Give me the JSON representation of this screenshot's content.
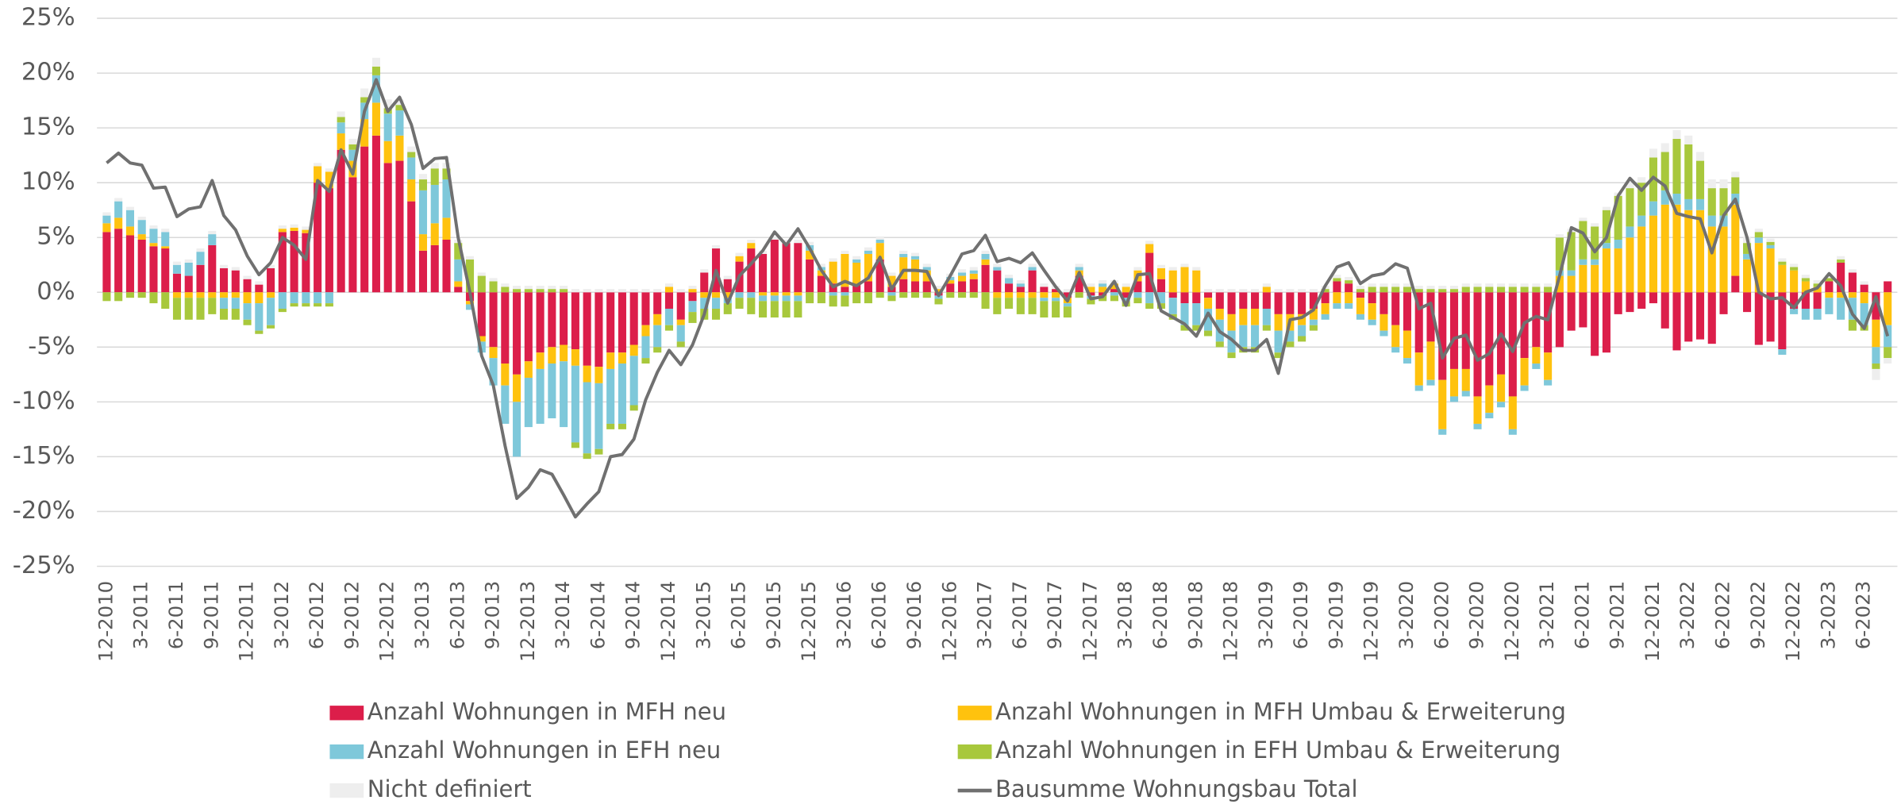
{
  "chart_data": {
    "type": "bar",
    "stacked": true,
    "grid": true,
    "legend": "bottom",
    "ylim": [
      -25,
      25
    ],
    "yticks": [
      {
        "value": -25,
        "label": "-25%"
      },
      {
        "value": -20,
        "label": "-20%"
      },
      {
        "value": -15,
        "label": "-15%"
      },
      {
        "value": -10,
        "label": "-10%"
      },
      {
        "value": -5,
        "label": "-5%"
      },
      {
        "value": 0,
        "label": "0%"
      },
      {
        "value": 5,
        "label": "5%"
      },
      {
        "value": 10,
        "label": "10%"
      },
      {
        "value": 15,
        "label": "15%"
      },
      {
        "value": 20,
        "label": "20%"
      },
      {
        "value": 25,
        "label": "25%"
      }
    ],
    "categories": [
      "12-2010",
      null,
      null,
      "3-2011",
      null,
      null,
      "6-2011",
      null,
      null,
      "9-2011",
      null,
      null,
      "12-2011",
      null,
      null,
      "3-2012",
      null,
      null,
      "6-2012",
      null,
      null,
      "9-2012",
      null,
      null,
      "12-2012",
      null,
      null,
      "3-2013",
      null,
      null,
      "6-2013",
      null,
      null,
      "9-2013",
      null,
      null,
      "12-2013",
      null,
      null,
      "3-2014",
      null,
      null,
      "6-2014",
      null,
      null,
      "9-2014",
      null,
      null,
      "12-2014",
      null,
      null,
      "3-2015",
      null,
      null,
      "6-2015",
      null,
      null,
      "9-2015",
      null,
      null,
      "12-2015",
      null,
      null,
      "3-2016",
      null,
      null,
      "6-2016",
      null,
      null,
      "9-2016",
      null,
      null,
      "12-2016",
      null,
      null,
      "3-2017",
      null,
      null,
      "6-2017",
      null,
      null,
      "9-2017",
      null,
      null,
      "12-2017",
      null,
      null,
      "3-2018",
      null,
      null,
      "6-2018",
      null,
      null,
      "9-2018",
      null,
      null,
      "12-2018",
      null,
      null,
      "3-2019",
      null,
      null,
      "6-2019",
      null,
      null,
      "9-2019",
      null,
      null,
      "12-2019",
      null,
      null,
      "3-2020",
      null,
      null,
      "6-2020",
      null,
      null,
      "9-2020",
      null,
      null,
      "12-2020",
      null,
      null,
      "3-2021",
      null,
      null,
      "6-2021",
      null,
      null,
      "9-2021",
      null,
      null,
      "12-2021",
      null,
      null,
      "3-2022",
      null,
      null,
      "6-2022",
      null,
      null,
      "9-2022",
      null,
      null,
      "12-2022",
      null,
      null,
      "3-2023",
      null,
      null,
      "6-2023",
      null,
      null
    ],
    "series": [
      {
        "name": "Anzahl Wohnungen in MFH neu",
        "color": "#dc1e4a",
        "values": [
          5.5,
          5.8,
          5.2,
          4.8,
          4.2,
          4.0,
          1.7,
          1.5,
          2.5,
          4.3,
          2.2,
          2.0,
          1.2,
          0.7,
          2.2,
          5.5,
          5.6,
          5.4,
          10.0,
          9.5,
          13.0,
          10.5,
          13.3,
          14.3,
          11.8,
          12.0,
          8.3,
          3.8,
          4.3,
          4.8,
          0.5,
          -0.8,
          -4.0,
          -5.0,
          -6.5,
          -7.5,
          -6.3,
          -5.5,
          -5.0,
          -4.8,
          -5.2,
          -6.7,
          -6.8,
          -5.5,
          -5.5,
          -4.8,
          -3.0,
          -2.0,
          -1.5,
          -2.5,
          -0.8,
          1.8,
          4.0,
          1.2,
          2.8,
          4.0,
          3.5,
          4.8,
          4.5,
          4.5,
          3.0,
          1.5,
          0.8,
          0.5,
          0.7,
          1.0,
          3.0,
          0.5,
          1.2,
          1.0,
          1.0,
          -0.3,
          0.8,
          1.0,
          1.2,
          2.5,
          2.0,
          0.8,
          0.5,
          2.0,
          0.5,
          0.3,
          -0.5,
          1.5,
          -0.3,
          -0.3,
          0.3,
          -0.5,
          1.0,
          3.6,
          1.2,
          -0.5,
          -1.0,
          -1.0,
          -0.5,
          -1.5,
          -2.0,
          -1.5,
          -1.5,
          -1.5,
          -2.0,
          -2.0,
          -2.0,
          -1.5,
          -1.0,
          1.0,
          0.8,
          -0.5,
          -1.0,
          -2.0,
          -3.0,
          -3.5,
          -5.5,
          -4.5,
          -8.0,
          -7.0,
          -7.0,
          -9.5,
          -8.5,
          -7.5,
          -9.5,
          -6.0,
          -5.0,
          -5.5,
          -5.0,
          -3.5,
          -3.2,
          -5.8,
          -5.5,
          -2.0,
          -1.8,
          -1.5,
          -1.0,
          -3.3,
          -5.3,
          -4.5,
          -4.3,
          -4.7,
          -2.0,
          1.5,
          -1.8,
          -4.8,
          -4.5,
          -5.2,
          -1.5,
          -1.5,
          -1.5,
          1.0,
          2.7,
          1.8,
          0.7,
          -2.5,
          1.0
        ]
      },
      {
        "name": "Anzahl Wohnungen in MFH Umbau & Erweiterung",
        "color": "#ffc20e",
        "values": [
          0.8,
          1.0,
          0.8,
          0.5,
          0.3,
          0.2,
          -0.5,
          -0.5,
          -0.5,
          -0.5,
          -0.5,
          -0.5,
          -1.0,
          -1.0,
          -0.5,
          0.3,
          0.3,
          0.3,
          1.5,
          1.5,
          1.5,
          1.5,
          2.5,
          3.0,
          2.0,
          2.3,
          2.0,
          1.5,
          2.0,
          2.0,
          0.5,
          -0.3,
          -0.5,
          -1.0,
          -2.0,
          -2.5,
          -1.5,
          -1.5,
          -1.5,
          -1.5,
          -1.5,
          -1.5,
          -1.5,
          -1.5,
          -1.0,
          -1.0,
          -1.0,
          -1.0,
          0.5,
          -0.5,
          0.3,
          -0.5,
          -0.5,
          -0.5,
          0.5,
          0.5,
          -0.3,
          -0.3,
          -0.3,
          -0.3,
          0.8,
          0.5,
          2.0,
          3.0,
          2.0,
          2.5,
          1.5,
          1.0,
          2.0,
          2.0,
          1.0,
          0.3,
          0.3,
          0.5,
          0.5,
          0.5,
          -0.5,
          -0.5,
          -0.5,
          -0.5,
          -0.5,
          -0.5,
          -0.5,
          0.5,
          0.5,
          0.5,
          0.5,
          0.5,
          1.0,
          0.8,
          1.0,
          2.0,
          2.3,
          2.0,
          -1.0,
          -1.0,
          -1.5,
          -1.5,
          -1.5,
          0.5,
          -1.5,
          -1.5,
          -1.0,
          -1.0,
          -1.0,
          -1.0,
          -1.0,
          -1.5,
          -1.5,
          -1.5,
          -2.0,
          -2.5,
          -3.0,
          -3.5,
          -4.5,
          -2.5,
          -2.0,
          -2.5,
          -2.5,
          -2.5,
          -3.0,
          -2.5,
          -1.5,
          -2.5,
          1.5,
          1.5,
          2.5,
          2.5,
          4.0,
          4.0,
          5.0,
          6.0,
          7.0,
          8.0,
          8.0,
          7.5,
          7.5,
          6.0,
          6.0,
          6.5,
          3.0,
          4.5,
          4.0,
          2.5,
          2.0,
          1.0,
          0.5,
          -0.5,
          -0.5,
          -0.5,
          -1.0,
          -2.5,
          -3.0
        ]
      },
      {
        "name": "Anzahl Wohnungen in EFH neu",
        "color": "#7ec8da",
        "values": [
          0.7,
          1.5,
          1.5,
          1.3,
          1.3,
          1.3,
          0.8,
          1.2,
          1.2,
          1.0,
          -1.0,
          -1.0,
          -1.5,
          -2.5,
          -2.5,
          -1.5,
          -1.0,
          -1.0,
          -1.0,
          -1.0,
          1.0,
          1.0,
          1.5,
          2.5,
          2.5,
          2.3,
          2.0,
          4.0,
          3.5,
          3.5,
          2.0,
          -0.5,
          -1.0,
          -2.5,
          -3.5,
          -5.0,
          -4.5,
          -5.0,
          -5.0,
          -6.0,
          -7.0,
          -6.5,
          -6.0,
          -5.0,
          -5.5,
          -4.5,
          -2.0,
          -2.0,
          -1.5,
          -1.5,
          -1.0,
          -1.0,
          -1.0,
          -0.5,
          -0.5,
          -0.5,
          -0.5,
          -0.5,
          -0.5,
          -0.5,
          0.5,
          0.3,
          -0.3,
          -0.3,
          0.3,
          0.3,
          0.3,
          -0.3,
          0.3,
          0.3,
          0.3,
          -0.3,
          0.3,
          0.3,
          0.3,
          0.5,
          0.3,
          0.5,
          0.3,
          0.3,
          -0.3,
          -0.3,
          -0.3,
          0.3,
          -0.3,
          0.3,
          -0.3,
          -0.3,
          -0.5,
          -1.0,
          -1.0,
          -1.5,
          -2.0,
          -2.0,
          -2.0,
          -2.0,
          -2.0,
          -2.0,
          -2.0,
          -1.5,
          -2.0,
          -1.0,
          -1.0,
          -0.5,
          -0.5,
          -0.5,
          -0.5,
          -0.5,
          -0.5,
          -0.5,
          -0.5,
          -0.5,
          -0.5,
          -0.5,
          -0.5,
          -0.5,
          -0.5,
          -0.5,
          -0.5,
          -0.5,
          -0.5,
          -0.5,
          -0.5,
          -0.5,
          0.5,
          0.5,
          0.5,
          0.5,
          0.5,
          0.8,
          1.0,
          1.0,
          1.3,
          1.3,
          1.0,
          1.0,
          1.0,
          1.0,
          1.0,
          1.0,
          0.5,
          0.5,
          0.3,
          -0.5,
          -0.5,
          -1.0,
          -1.0,
          -1.5,
          -2.0,
          -2.0,
          -2.0,
          -1.5,
          -2.0
        ]
      },
      {
        "name": "Anzahl Wohnungen in EFH Umbau & Erweiterung",
        "color": "#a8c83c",
        "values": [
          -0.8,
          -0.8,
          -0.5,
          -0.5,
          -1.0,
          -1.5,
          -2.0,
          -2.0,
          -2.0,
          -1.5,
          -1.0,
          -1.0,
          -0.5,
          -0.3,
          -0.3,
          -0.3,
          -0.3,
          -0.3,
          -0.3,
          -0.3,
          0.5,
          0.5,
          0.5,
          0.8,
          0.5,
          0.5,
          0.5,
          1.0,
          1.5,
          1.0,
          1.5,
          3.0,
          1.5,
          1.0,
          0.5,
          0.3,
          0.3,
          0.3,
          0.3,
          0.3,
          -0.5,
          -0.5,
          -0.5,
          -0.5,
          -0.5,
          -0.5,
          -0.5,
          -0.5,
          -0.5,
          -0.5,
          -1.0,
          -1.0,
          -1.0,
          -1.0,
          -1.0,
          -1.5,
          -1.5,
          -1.5,
          -1.5,
          -1.5,
          -1.0,
          -1.0,
          -1.0,
          -1.0,
          -1.0,
          -1.0,
          -0.5,
          -0.5,
          -0.5,
          -0.5,
          -0.5,
          -0.5,
          -0.5,
          -0.5,
          -0.5,
          -1.5,
          -1.5,
          -1.0,
          -1.5,
          -1.5,
          -1.5,
          -1.5,
          -1.0,
          -0.5,
          -0.5,
          -0.5,
          -0.5,
          -0.5,
          -0.5,
          -0.5,
          -0.5,
          -0.5,
          -0.5,
          -0.5,
          -0.5,
          -0.5,
          -0.5,
          -0.5,
          -0.5,
          -0.5,
          -0.5,
          -0.5,
          -0.5,
          -0.5,
          0.3,
          0.3,
          0.3,
          0.3,
          0.5,
          0.5,
          0.5,
          0.5,
          0.3,
          0.3,
          0.3,
          0.3,
          0.5,
          0.5,
          0.5,
          0.5,
          0.5,
          0.5,
          0.5,
          0.5,
          3.0,
          3.5,
          3.5,
          3.0,
          3.0,
          4.0,
          3.5,
          3.0,
          4.0,
          3.5,
          5.0,
          5.0,
          3.5,
          2.5,
          2.5,
          1.5,
          1.0,
          0.5,
          0.3,
          0.3,
          0.3,
          0.3,
          0.3,
          0.3,
          0.3,
          -1.0,
          -0.5,
          -0.5,
          -1.0
        ]
      },
      {
        "name": "Nicht definiert",
        "color": "#eeeeee",
        "values": [
          0.3,
          0.3,
          0.3,
          0.3,
          0.3,
          0.3,
          0.3,
          0.3,
          0.3,
          0.3,
          0.3,
          0.3,
          0.3,
          0.3,
          0.3,
          0.3,
          0.3,
          0.3,
          0.3,
          0.3,
          0.5,
          0.5,
          0.8,
          0.8,
          0.8,
          0.5,
          0.5,
          0.5,
          0.5,
          0.5,
          0.3,
          0.3,
          0.3,
          0.3,
          0.3,
          0.3,
          0.3,
          0.3,
          0.3,
          0.3,
          0.3,
          0.3,
          0.3,
          0.3,
          0.3,
          0.3,
          0.3,
          0.3,
          0.3,
          0.3,
          0.3,
          0.3,
          0.3,
          0.3,
          0.3,
          0.3,
          0.3,
          0.3,
          0.3,
          0.3,
          0.3,
          0.3,
          0.3,
          0.3,
          0.3,
          0.3,
          0.3,
          0.3,
          0.3,
          0.3,
          0.3,
          0.3,
          0.3,
          0.3,
          0.3,
          0.3,
          0.3,
          0.3,
          0.3,
          0.3,
          0.3,
          0.3,
          0.3,
          0.3,
          0.3,
          0.3,
          0.3,
          0.3,
          0.3,
          0.3,
          0.3,
          0.3,
          0.3,
          0.3,
          0.3,
          0.3,
          0.3,
          0.3,
          0.3,
          0.3,
          0.3,
          0.3,
          0.3,
          0.3,
          0.3,
          0.3,
          0.3,
          0.3,
          0.3,
          0.3,
          0.3,
          0.3,
          0.3,
          0.3,
          0.3,
          0.3,
          0.3,
          0.3,
          0.3,
          0.3,
          0.3,
          0.3,
          0.3,
          0.3,
          0.3,
          0.3,
          0.3,
          0.3,
          0.3,
          0.3,
          0.5,
          0.5,
          0.8,
          0.8,
          0.8,
          0.8,
          0.8,
          0.8,
          0.8,
          0.5,
          0.5,
          0.3,
          0.3,
          0.3,
          0.3,
          0.3,
          0.3,
          0.3,
          0.3,
          0.3,
          0.3,
          -1.0,
          -0.5
        ]
      },
      {
        "name": "Bausumme Wohnungsbau Total",
        "color": "#707070",
        "type": "line",
        "values": [
          11.8,
          12.7,
          11.8,
          11.6,
          9.5,
          9.6,
          6.9,
          7.6,
          7.8,
          10.2,
          7.0,
          5.7,
          3.3,
          1.6,
          2.7,
          5.0,
          4.3,
          3.0,
          10.2,
          9.2,
          13.0,
          10.8,
          16.5,
          19.4,
          16.5,
          17.8,
          15.3,
          11.3,
          12.2,
          12.3,
          5.0,
          0.0,
          -5.8,
          -8.5,
          -14.0,
          -18.8,
          -17.8,
          -16.2,
          -16.6,
          -18.5,
          -20.5,
          -19.3,
          -18.2,
          -15.0,
          -14.8,
          -13.4,
          -9.8,
          -7.3,
          -5.3,
          -6.6,
          -4.8,
          -2.0,
          2.0,
          -1.0,
          1.5,
          2.6,
          3.8,
          5.5,
          4.3,
          5.8,
          4.0,
          2.0,
          0.5,
          1.0,
          0.6,
          1.3,
          3.2,
          0.3,
          2.0,
          2.0,
          1.9,
          -0.3,
          1.5,
          3.5,
          3.8,
          5.2,
          2.8,
          3.1,
          2.7,
          3.6,
          2.0,
          0.5,
          -0.8,
          1.8,
          -0.6,
          -0.4,
          1.0,
          -1.2,
          1.6,
          1.7,
          -1.7,
          -2.3,
          -2.9,
          -4.0,
          -1.9,
          -3.6,
          -4.3,
          -5.3,
          -5.3,
          -4.3,
          -7.4,
          -2.5,
          -2.3,
          -1.6,
          0.6,
          2.3,
          2.7,
          0.8,
          1.5,
          1.7,
          2.6,
          2.2,
          -1.5,
          -1.0,
          -6.0,
          -4.2,
          -3.9,
          -6.2,
          -5.6,
          -3.8,
          -5.4,
          -2.8,
          -2.2,
          -2.5,
          1.5,
          5.9,
          5.4,
          3.7,
          5.0,
          8.8,
          10.4,
          9.3,
          10.5,
          9.7,
          7.2,
          6.9,
          6.7,
          3.6,
          7.0,
          8.5,
          5.0,
          0.0,
          -0.6,
          -0.5,
          -1.4,
          0.0,
          0.4,
          1.7,
          0.6,
          -2.0,
          -3.3,
          -0.4,
          -4.0
        ]
      }
    ]
  }
}
